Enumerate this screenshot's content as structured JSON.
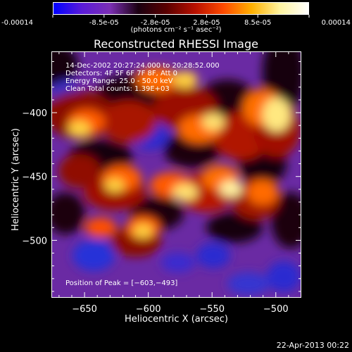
{
  "colorbar": {
    "stops": [
      "#0000ff",
      "#5a1bd8",
      "#7b2fb3",
      "#1a0010",
      "#5a0000",
      "#b81000",
      "#ff4a00",
      "#ffb000",
      "#fff4a0",
      "#ffffff"
    ],
    "tick_labels": [
      "-0.00014",
      "-8.5e-05",
      "-2.8e-05",
      "2.8e-05",
      "8.5e-05",
      "0.00014"
    ],
    "unit_label": "(photons cm⁻² s⁻¹ asec⁻²)"
  },
  "chart_data": {
    "type": "heatmap",
    "title": "Reconstructed RHESSI Image",
    "xlabel": "Heliocentric X (arcsec)",
    "ylabel": "Heliocentric Y (arcsec)",
    "xlim": [
      -676,
      -480
    ],
    "ylim": [
      -545,
      -352
    ],
    "x_ticks": [
      -650,
      -600,
      -550,
      -500
    ],
    "x_tick_labels": [
      "−650",
      "−600",
      "−550",
      "−500"
    ],
    "y_ticks": [
      -400,
      -450,
      -500
    ],
    "y_tick_labels": [
      "−400",
      "−450",
      "−500"
    ],
    "peak": {
      "x": -603,
      "y": -493
    },
    "annotations": [
      "14-Dec-2002 20:27:24.000 to 20:28:52.000",
      "Detectors: 4F 5F 6F 7F 8F, Att 0",
      "Energy Range: 25.0 - 50.0 keV",
      "Clean     Total counts: 1.39E+03",
      "Position of Peak = [−603,−493]"
    ]
  },
  "footer": {
    "timestamp": "22-Apr-2013 00:22"
  }
}
